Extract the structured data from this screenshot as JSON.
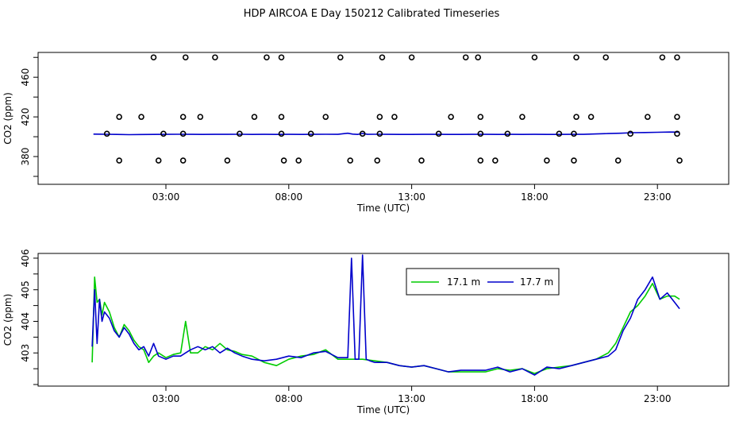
{
  "title": "HDP AIRCOA E  Day 150212  Calibrated Timeseries",
  "colors": {
    "series_17_1": "#00cc00",
    "series_17_7": "#0000cc",
    "axis": "#000000"
  },
  "chart_data": [
    {
      "type": "scatter",
      "xlabel": "Time (UTC)",
      "ylabel": "CO2 (ppm)",
      "xlim": [
        -2.2,
        25.9
      ],
      "ylim": [
        352,
        485
      ],
      "xticks": [
        3,
        8,
        13,
        18,
        23
      ],
      "xtick_labels": [
        "03:00",
        "08:00",
        "13:00",
        "18:00",
        "23:00"
      ],
      "yticks": [
        380,
        420,
        460
      ],
      "ytick_labels": [
        "380",
        "420",
        "460"
      ],
      "grid": false,
      "calibration_points": [
        {
          "x": 1.1,
          "y": 376
        },
        {
          "x": 2.7,
          "y": 376
        },
        {
          "x": 3.7,
          "y": 376
        },
        {
          "x": 5.5,
          "y": 376
        },
        {
          "x": 7.8,
          "y": 376
        },
        {
          "x": 8.4,
          "y": 376
        },
        {
          "x": 10.5,
          "y": 376
        },
        {
          "x": 11.6,
          "y": 376
        },
        {
          "x": 13.4,
          "y": 376
        },
        {
          "x": 15.8,
          "y": 376
        },
        {
          "x": 16.4,
          "y": 376
        },
        {
          "x": 18.5,
          "y": 376
        },
        {
          "x": 19.6,
          "y": 376
        },
        {
          "x": 21.4,
          "y": 376
        },
        {
          "x": 23.9,
          "y": 376
        },
        {
          "x": 0.6,
          "y": 403
        },
        {
          "x": 2.9,
          "y": 403
        },
        {
          "x": 3.7,
          "y": 403
        },
        {
          "x": 6.0,
          "y": 403
        },
        {
          "x": 7.7,
          "y": 403
        },
        {
          "x": 8.9,
          "y": 403
        },
        {
          "x": 11.0,
          "y": 403
        },
        {
          "x": 11.7,
          "y": 403
        },
        {
          "x": 14.1,
          "y": 403
        },
        {
          "x": 15.8,
          "y": 403
        },
        {
          "x": 16.9,
          "y": 403
        },
        {
          "x": 19.0,
          "y": 403
        },
        {
          "x": 19.6,
          "y": 403
        },
        {
          "x": 21.9,
          "y": 403
        },
        {
          "x": 23.8,
          "y": 403
        },
        {
          "x": 1.1,
          "y": 420
        },
        {
          "x": 2.0,
          "y": 420
        },
        {
          "x": 3.7,
          "y": 420
        },
        {
          "x": 4.4,
          "y": 420
        },
        {
          "x": 6.6,
          "y": 420
        },
        {
          "x": 7.7,
          "y": 420
        },
        {
          "x": 9.5,
          "y": 420
        },
        {
          "x": 11.7,
          "y": 420
        },
        {
          "x": 12.3,
          "y": 420
        },
        {
          "x": 14.6,
          "y": 420
        },
        {
          "x": 15.8,
          "y": 420
        },
        {
          "x": 17.5,
          "y": 420
        },
        {
          "x": 19.7,
          "y": 420
        },
        {
          "x": 20.3,
          "y": 420
        },
        {
          "x": 22.6,
          "y": 420
        },
        {
          "x": 23.8,
          "y": 420
        },
        {
          "x": 2.5,
          "y": 480
        },
        {
          "x": 3.8,
          "y": 480
        },
        {
          "x": 5.0,
          "y": 480
        },
        {
          "x": 7.1,
          "y": 480
        },
        {
          "x": 7.7,
          "y": 480
        },
        {
          "x": 10.1,
          "y": 480
        },
        {
          "x": 11.8,
          "y": 480
        },
        {
          "x": 13.0,
          "y": 480
        },
        {
          "x": 15.2,
          "y": 480
        },
        {
          "x": 15.7,
          "y": 480
        },
        {
          "x": 18.0,
          "y": 480
        },
        {
          "x": 19.7,
          "y": 480
        },
        {
          "x": 20.9,
          "y": 480
        },
        {
          "x": 23.2,
          "y": 480
        },
        {
          "x": 23.8,
          "y": 480
        }
      ],
      "series": [
        {
          "name": "17.7 m",
          "color": "#0000cc",
          "x": [
            0.05,
            0.5,
            1,
            1.5,
            2,
            2.5,
            3,
            3.5,
            4,
            4.5,
            5,
            5.5,
            6,
            6.5,
            7,
            7.5,
            8,
            8.5,
            9,
            9.5,
            10,
            10.4,
            10.6,
            10.8,
            11.0,
            11.2,
            11.5,
            12,
            12.5,
            13,
            13.5,
            14,
            14.5,
            15,
            15.5,
            16,
            16.5,
            17,
            17.5,
            18,
            18.5,
            19,
            19.5,
            20,
            20.5,
            21,
            21.5,
            22,
            22.5,
            23,
            23.5,
            23.9
          ],
          "values": [
            402.6,
            402.5,
            402.3,
            402.1,
            402.2,
            402.3,
            402.4,
            402.5,
            402.4,
            402.3,
            402.4,
            402.4,
            402.5,
            402.3,
            402.4,
            402.3,
            402.4,
            402.3,
            402.4,
            402.5,
            402.4,
            403.5,
            402.6,
            402.3,
            403.3,
            402.4,
            402.5,
            402.4,
            402.3,
            402.3,
            402.4,
            402.4,
            402.3,
            402.3,
            402.4,
            402.4,
            402.3,
            402.4,
            402.3,
            402.4,
            402.3,
            402.3,
            402.4,
            402.4,
            402.8,
            403.2,
            403.5,
            404.1,
            404.2,
            404.5,
            404.7,
            404.6
          ]
        }
      ]
    },
    {
      "type": "line",
      "xlabel": "Time (UTC)",
      "ylabel": "CO2 (ppm)",
      "xlim": [
        -2.2,
        25.9
      ],
      "ylim": [
        401.95,
        406.15
      ],
      "xticks": [
        3,
        8,
        13,
        18,
        23
      ],
      "xtick_labels": [
        "03:00",
        "08:00",
        "13:00",
        "18:00",
        "23:00"
      ],
      "yticks": [
        403,
        404,
        405,
        406
      ],
      "ytick_labels": [
        "403",
        "404",
        "405",
        "406"
      ],
      "grid": false,
      "legend": "top-center",
      "series": [
        {
          "name": "17.1 m",
          "color": "#00cc00",
          "x": [
            0,
            0.1,
            0.2,
            0.3,
            0.4,
            0.5,
            0.7,
            0.9,
            1.1,
            1.3,
            1.5,
            1.7,
            1.9,
            2.1,
            2.3,
            2.5,
            2.7,
            3.0,
            3.3,
            3.6,
            3.8,
            4.0,
            4.3,
            4.6,
            4.9,
            5.2,
            5.5,
            5.8,
            6.1,
            6.5,
            7.0,
            7.5,
            8.0,
            8.5,
            9.0,
            9.5,
            10.0,
            10.5,
            11.0,
            11.5,
            12.0,
            12.5,
            13.0,
            13.5,
            14.0,
            14.5,
            15.0,
            15.5,
            16.0,
            16.5,
            17.0,
            17.5,
            18.0,
            18.5,
            19.0,
            19.5,
            20.0,
            20.5,
            21.0,
            21.3,
            21.6,
            21.9,
            22.2,
            22.5,
            22.8,
            23.1,
            23.4,
            23.7,
            23.9
          ],
          "values": [
            402.7,
            405.4,
            404.6,
            404.7,
            404.2,
            404.6,
            404.3,
            403.8,
            403.5,
            403.9,
            403.7,
            403.4,
            403.2,
            403.1,
            402.7,
            402.9,
            403.0,
            402.85,
            402.95,
            403.0,
            404.0,
            403.0,
            403.0,
            403.2,
            403.1,
            403.3,
            403.1,
            403.05,
            402.95,
            402.9,
            402.7,
            402.6,
            402.8,
            402.9,
            402.95,
            403.1,
            402.8,
            402.8,
            402.8,
            402.75,
            402.7,
            402.6,
            402.55,
            402.6,
            402.5,
            402.4,
            402.4,
            402.4,
            402.4,
            402.5,
            402.45,
            402.5,
            402.35,
            402.5,
            402.55,
            402.6,
            402.7,
            402.8,
            403.0,
            403.3,
            403.8,
            404.3,
            404.5,
            404.8,
            405.2,
            404.7,
            404.8,
            404.8,
            404.7
          ]
        },
        {
          "name": "17.7 m",
          "color": "#0000cc",
          "x": [
            0,
            0.1,
            0.2,
            0.3,
            0.4,
            0.5,
            0.7,
            0.9,
            1.1,
            1.3,
            1.5,
            1.7,
            1.9,
            2.1,
            2.3,
            2.5,
            2.7,
            3.0,
            3.3,
            3.6,
            3.8,
            4.0,
            4.3,
            4.6,
            4.9,
            5.2,
            5.5,
            5.8,
            6.1,
            6.5,
            7.0,
            7.5,
            8.0,
            8.5,
            9.0,
            9.5,
            10.0,
            10.4,
            10.55,
            10.7,
            10.85,
            11.0,
            11.15,
            11.3,
            11.5,
            12.0,
            12.5,
            13.0,
            13.5,
            14.0,
            14.5,
            15.0,
            15.5,
            16.0,
            16.5,
            17.0,
            17.5,
            18.0,
            18.5,
            19.0,
            19.5,
            20.0,
            20.5,
            21.0,
            21.3,
            21.6,
            21.9,
            22.2,
            22.5,
            22.8,
            23.1,
            23.4,
            23.7,
            23.9
          ],
          "values": [
            403.2,
            405.0,
            403.3,
            404.7,
            404.0,
            404.3,
            404.1,
            403.7,
            403.5,
            403.8,
            403.6,
            403.3,
            403.1,
            403.2,
            402.9,
            403.3,
            402.9,
            402.8,
            402.9,
            402.9,
            403.0,
            403.1,
            403.2,
            403.1,
            403.2,
            403.0,
            403.15,
            403.0,
            402.9,
            402.8,
            402.75,
            402.8,
            402.9,
            402.85,
            403.0,
            403.05,
            402.85,
            402.85,
            406.0,
            402.8,
            402.8,
            406.1,
            402.8,
            402.75,
            402.7,
            402.7,
            402.6,
            402.55,
            402.6,
            402.5,
            402.4,
            402.45,
            402.45,
            402.45,
            402.55,
            402.4,
            402.5,
            402.3,
            402.55,
            402.5,
            402.6,
            402.7,
            402.8,
            402.9,
            403.1,
            403.7,
            404.1,
            404.7,
            405.0,
            405.4,
            404.7,
            404.9,
            404.6,
            404.4
          ]
        }
      ]
    }
  ]
}
